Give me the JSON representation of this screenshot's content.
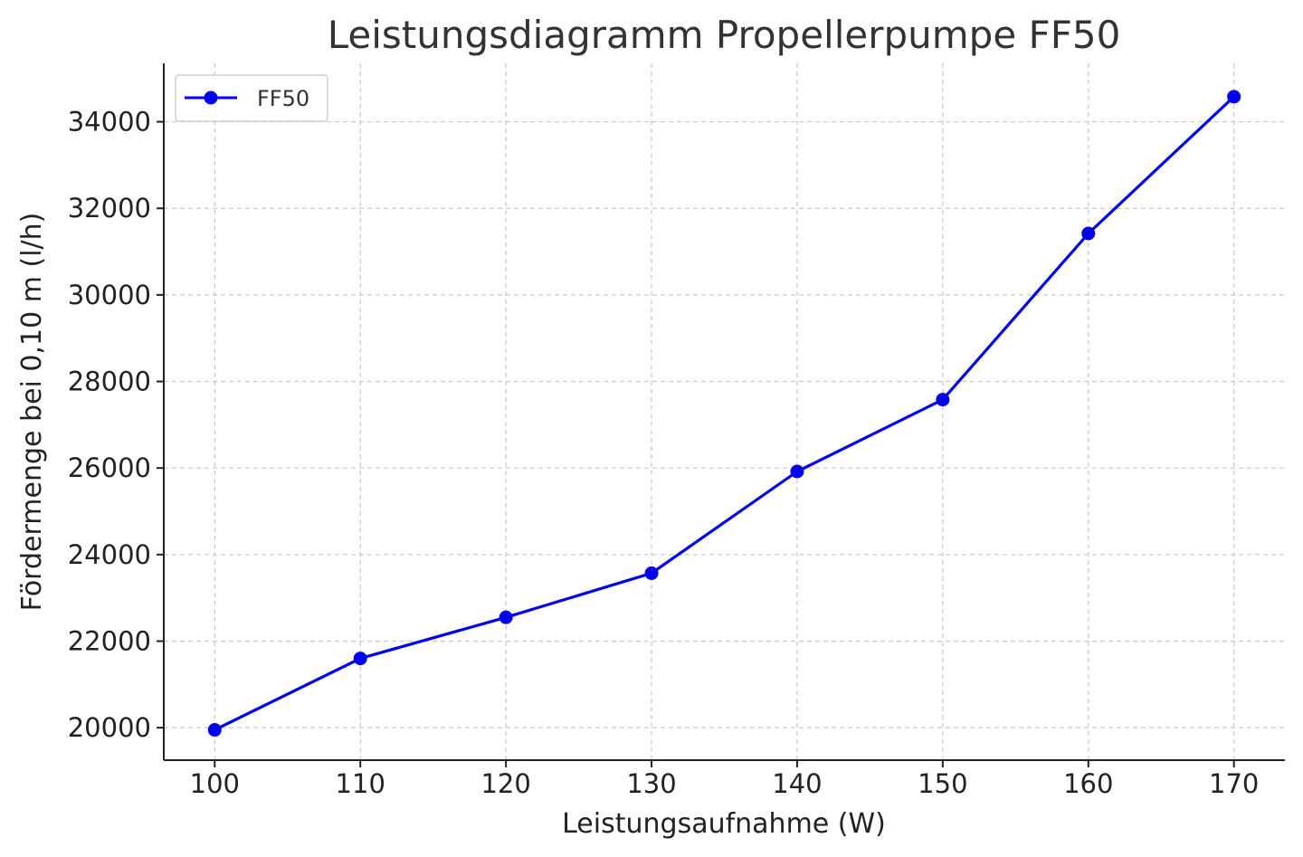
{
  "chart_data": {
    "type": "line",
    "title": "Leistungsdiagramm Propellerpumpe FF50",
    "xlabel": "Leistungsaufnahme (W)",
    "ylabel": "Fördermenge bei 0,10 m (l/h)",
    "x": [
      100,
      110,
      120,
      130,
      140,
      150,
      160,
      170
    ],
    "xticks": [
      "100",
      "110",
      "120",
      "130",
      "140",
      "150",
      "160",
      "170"
    ],
    "yticks": [
      "20000",
      "22000",
      "24000",
      "26000",
      "28000",
      "30000",
      "32000",
      "34000"
    ],
    "xlim": [
      96.5,
      173.5
    ],
    "ylim": [
      19250,
      35350
    ],
    "grid": true,
    "legend_position": "top-left",
    "series": [
      {
        "name": "FF50",
        "color": "#0000ee",
        "marker": "circle",
        "values": [
          19950,
          21600,
          22550,
          23570,
          25920,
          27580,
          31420,
          34580
        ]
      }
    ]
  }
}
